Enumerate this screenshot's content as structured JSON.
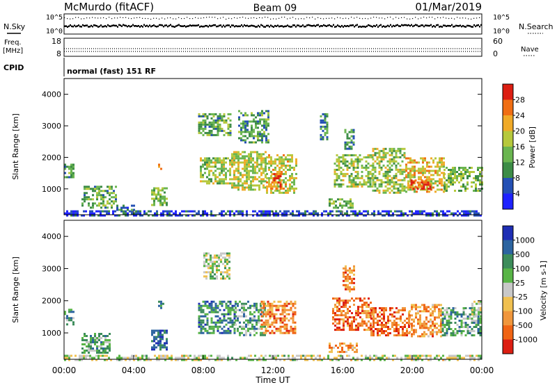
{
  "header": {
    "station": "McMurdo (fitACF)",
    "beam": "Beam 09",
    "date": "01/Mar/2019"
  },
  "summary": {
    "nsky_label": "N.Sky",
    "nsearch_label": "N.Search",
    "noise_ticks": [
      "10^5",
      "10^0"
    ],
    "freq_label": "Freq.",
    "freq_unit": "[MHz]",
    "freq_ticks": [
      "18",
      "8"
    ],
    "nave_label": "Nave",
    "nave_ticks": [
      "60",
      "0"
    ],
    "cpid_label": "CPID",
    "cpid_text": "normal (fast) 151 RF"
  },
  "chart_data": [
    {
      "type": "heatmap",
      "name": "power",
      "ylabel": "Slant Range [km]",
      "ylim": [
        180,
        4500
      ],
      "yticks": [
        1000,
        2000,
        3000,
        4000
      ],
      "xlim": [
        0,
        24
      ],
      "colorbar": {
        "label": "Power [dB]",
        "ticks": [
          "4",
          "8",
          "12",
          "16",
          "20",
          "24",
          "28"
        ],
        "colors": [
          "#1e22ff",
          "#2450b4",
          "#3c8c46",
          "#6ab550",
          "#b6c83c",
          "#f0aa28",
          "#f06e14",
          "#dc1e12"
        ]
      },
      "regions": [
        {
          "t0": 0,
          "t1": 24,
          "r0": 180,
          "r1": 320,
          "level": 0.15
        },
        {
          "t0": 0.0,
          "t1": 0.5,
          "r0": 1350,
          "r1": 1800,
          "level": 0.35
        },
        {
          "t0": 1.0,
          "t1": 3.0,
          "r0": 380,
          "r1": 1100,
          "level": 0.4
        },
        {
          "t0": 3.0,
          "t1": 4.0,
          "r0": 350,
          "r1": 500,
          "level": 0.25
        },
        {
          "t0": 5.0,
          "t1": 5.9,
          "r0": 500,
          "r1": 1050,
          "level": 0.45
        },
        {
          "t0": 5.4,
          "t1": 5.6,
          "r0": 1550,
          "r1": 1800,
          "level": 0.6
        },
        {
          "t0": 7.7,
          "t1": 9.6,
          "r0": 2700,
          "r1": 3400,
          "level": 0.4
        },
        {
          "t0": 7.8,
          "t1": 9.5,
          "r0": 1200,
          "r1": 2000,
          "level": 0.5
        },
        {
          "t0": 9.6,
          "t1": 11.6,
          "r0": 1000,
          "r1": 2200,
          "level": 0.55
        },
        {
          "t0": 10.0,
          "t1": 11.7,
          "r0": 2500,
          "r1": 3500,
          "level": 0.35
        },
        {
          "t0": 11.6,
          "t1": 13.3,
          "r0": 900,
          "r1": 2100,
          "level": 0.6
        },
        {
          "t0": 11.9,
          "t1": 12.4,
          "r0": 1000,
          "r1": 1500,
          "level": 0.85
        },
        {
          "t0": 15.5,
          "t1": 17.7,
          "r0": 1100,
          "r1": 2100,
          "level": 0.5
        },
        {
          "t0": 15.2,
          "t1": 16.6,
          "r0": 400,
          "r1": 700,
          "level": 0.45
        },
        {
          "t0": 16.1,
          "t1": 16.7,
          "r0": 2300,
          "r1": 2900,
          "level": 0.3
        },
        {
          "t0": 17.7,
          "t1": 19.6,
          "r0": 900,
          "r1": 2300,
          "level": 0.5
        },
        {
          "t0": 19.6,
          "t1": 21.8,
          "r0": 900,
          "r1": 2000,
          "level": 0.65
        },
        {
          "t0": 19.9,
          "t1": 21.0,
          "r0": 1000,
          "r1": 1300,
          "level": 0.9
        },
        {
          "t0": 21.8,
          "t1": 24.0,
          "r0": 950,
          "r1": 1700,
          "level": 0.45
        },
        {
          "t0": 14.7,
          "t1": 15.1,
          "r0": 2600,
          "r1": 3400,
          "level": 0.3
        }
      ]
    },
    {
      "type": "heatmap",
      "name": "velocity",
      "ylabel": "Slant Range [km]",
      "xlabel": "Time UT",
      "ylim": [
        180,
        4500
      ],
      "yticks": [
        1000,
        2000,
        3000,
        4000
      ],
      "xlim": [
        0,
        24
      ],
      "xticks": [
        "00:00",
        "04:00",
        "08:00",
        "12:00",
        "16:00",
        "20:00",
        "00:00"
      ],
      "colorbar": {
        "label": "Velocity [m s-1]",
        "ticks": [
          "1000",
          "500",
          "100",
          "25",
          "-25",
          "-100",
          "-500",
          "-1000"
        ],
        "colors": [
          "#1e2eb4",
          "#2c64a0",
          "#3c8c5a",
          "#58b446",
          "#c8c8c8",
          "#f0c050",
          "#f0963c",
          "#f06414",
          "#dc1e12"
        ]
      },
      "regions": [
        {
          "t0": 0,
          "t1": 24,
          "r0": 180,
          "r1": 320,
          "level": 0.5
        },
        {
          "t0": 0.0,
          "t1": 0.6,
          "r0": 1250,
          "r1": 1750,
          "level": 0.3
        },
        {
          "t0": 1.0,
          "t1": 2.6,
          "r0": 400,
          "r1": 1000,
          "level": 0.35
        },
        {
          "t0": 5.0,
          "t1": 5.9,
          "r0": 500,
          "r1": 1100,
          "level": 0.15
        },
        {
          "t0": 5.4,
          "t1": 5.7,
          "r0": 1750,
          "r1": 2000,
          "level": 0.25
        },
        {
          "t0": 7.7,
          "t1": 9.8,
          "r0": 1000,
          "r1": 2000,
          "level": 0.25
        },
        {
          "t0": 8.0,
          "t1": 9.5,
          "r0": 2700,
          "r1": 3500,
          "level": 0.45
        },
        {
          "t0": 9.8,
          "t1": 11.5,
          "r0": 900,
          "r1": 2000,
          "level": 0.35
        },
        {
          "t0": 11.3,
          "t1": 13.3,
          "r0": 1000,
          "r1": 2000,
          "level": 0.75
        },
        {
          "t0": 15.2,
          "t1": 16.8,
          "r0": 400,
          "r1": 700,
          "level": 0.72
        },
        {
          "t0": 15.4,
          "t1": 17.6,
          "r0": 1100,
          "r1": 2100,
          "level": 0.8
        },
        {
          "t0": 17.6,
          "t1": 19.8,
          "r0": 900,
          "r1": 1800,
          "level": 0.82
        },
        {
          "t0": 19.8,
          "t1": 21.7,
          "r0": 900,
          "r1": 1900,
          "level": 0.72
        },
        {
          "t0": 21.7,
          "t1": 23.9,
          "r0": 900,
          "r1": 1800,
          "level": 0.35
        },
        {
          "t0": 16.0,
          "t1": 16.6,
          "r0": 2300,
          "r1": 3100,
          "level": 0.75
        },
        {
          "t0": 23.4,
          "t1": 23.9,
          "r0": 1500,
          "r1": 2000,
          "level": 0.5
        }
      ]
    }
  ]
}
